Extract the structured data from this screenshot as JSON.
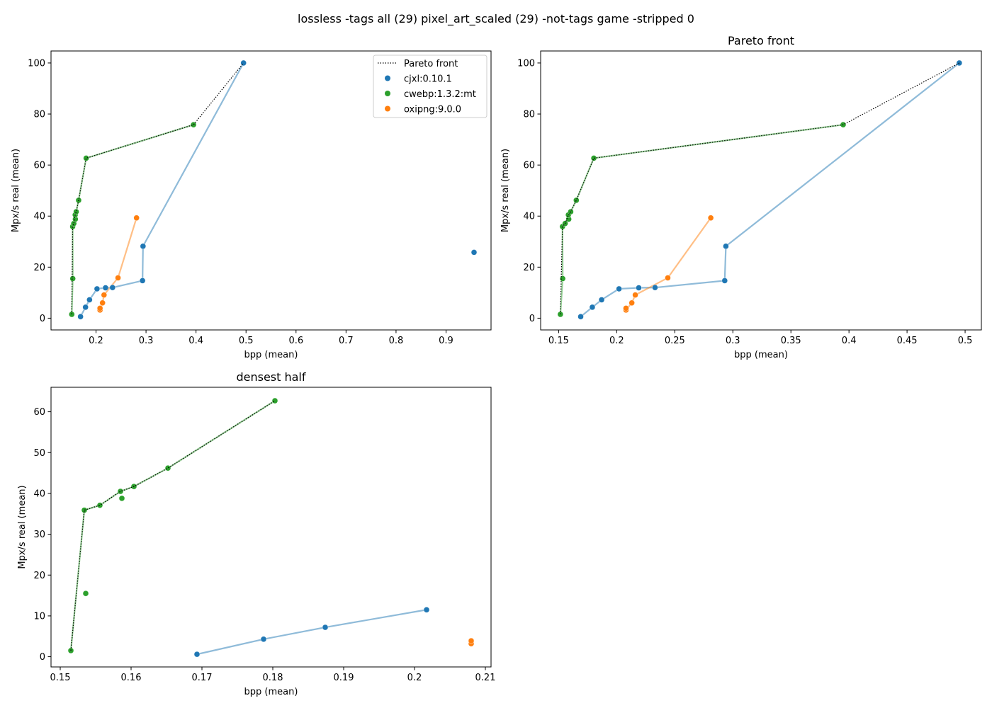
{
  "figure": {
    "suptitle": "lossless -tags all (29) pixel_art_scaled (29) -not-tags game -stripped 0"
  },
  "legend": {
    "items": [
      {
        "label": "Pareto front",
        "kind": "line",
        "color": "#000000"
      },
      {
        "label": "cjxl:0.10.1",
        "kind": "marker",
        "color": "#1f77b4"
      },
      {
        "label": "cwebp:1.3.2:mt",
        "kind": "marker",
        "color": "#2ca02c"
      },
      {
        "label": "oxipng:9.0.0",
        "kind": "marker",
        "color": "#ff7f0e"
      }
    ]
  },
  "chart_data": [
    {
      "type": "scatter",
      "title": "",
      "xlabel": "bpp (mean)",
      "ylabel": "Mpx/s real (mean)",
      "xlim": [
        0.11,
        0.99
      ],
      "ylim": [
        -4.6,
        104.7
      ],
      "xticks": [
        0.2,
        0.3,
        0.4,
        0.5,
        0.6,
        0.7,
        0.8,
        0.9
      ],
      "yticks": [
        0,
        20,
        40,
        60,
        80,
        100
      ],
      "legend": "top-right",
      "series": [
        {
          "name": "cjxl:0.10.1",
          "color": "#1f77b4",
          "connected": true,
          "points": [
            [
              0.169,
              0.6
            ],
            [
              0.179,
              4.3
            ],
            [
              0.187,
              7.2
            ],
            [
              0.202,
              11.5
            ],
            [
              0.219,
              11.9
            ],
            [
              0.233,
              12.0
            ],
            [
              0.293,
              14.7
            ],
            [
              0.294,
              28.2
            ],
            [
              0.495,
              100.0
            ],
            [
              0.956,
              25.8
            ]
          ],
          "line_points": [
            [
              0.169,
              0.6
            ],
            [
              0.179,
              4.3
            ],
            [
              0.187,
              7.2
            ],
            [
              0.202,
              11.5
            ],
            [
              0.219,
              11.9
            ],
            [
              0.233,
              12.0
            ],
            [
              0.293,
              14.7
            ],
            [
              0.294,
              28.2
            ],
            [
              0.495,
              100.0
            ]
          ]
        },
        {
          "name": "cwebp:1.3.2:mt",
          "color": "#2ca02c",
          "connected": true,
          "points": [
            [
              0.1515,
              1.5
            ],
            [
              0.1535,
              15.5
            ],
            [
              0.1533,
              35.9
            ],
            [
              0.1556,
              37.1
            ],
            [
              0.1587,
              38.8
            ],
            [
              0.1584,
              40.5
            ],
            [
              0.1604,
              41.7
            ],
            [
              0.1652,
              46.2
            ],
            [
              0.1803,
              62.7
            ],
            [
              0.395,
              75.8
            ]
          ],
          "line_points": [
            [
              0.1515,
              1.5
            ],
            [
              0.1535,
              15.5
            ],
            [
              0.1533,
              35.9
            ],
            [
              0.1556,
              37.1
            ],
            [
              0.1587,
              38.8
            ],
            [
              0.1584,
              40.5
            ],
            [
              0.1604,
              41.7
            ],
            [
              0.1652,
              46.2
            ],
            [
              0.1803,
              62.7
            ],
            [
              0.395,
              75.8
            ]
          ]
        },
        {
          "name": "oxipng:9.0.0",
          "color": "#ff7f0e",
          "connected": true,
          "points": [
            [
              0.208,
              3.2
            ],
            [
              0.208,
              3.9
            ],
            [
              0.213,
              6.0
            ],
            [
              0.216,
              9.1
            ],
            [
              0.244,
              15.8
            ],
            [
              0.281,
              39.3
            ]
          ],
          "line_points": [
            [
              0.208,
              3.2
            ],
            [
              0.213,
              6.0
            ],
            [
              0.216,
              9.1
            ],
            [
              0.244,
              15.8
            ],
            [
              0.281,
              39.3
            ]
          ]
        },
        {
          "name": "Pareto front",
          "color": "#000000",
          "style": "dotted",
          "points": [
            [
              0.1515,
              1.5
            ],
            [
              0.1533,
              35.9
            ],
            [
              0.1556,
              37.1
            ],
            [
              0.1584,
              40.5
            ],
            [
              0.1604,
              41.7
            ],
            [
              0.1652,
              46.2
            ],
            [
              0.1803,
              62.7
            ],
            [
              0.395,
              75.8
            ],
            [
              0.495,
              100.0
            ]
          ]
        }
      ]
    },
    {
      "type": "scatter",
      "title": "Pareto front",
      "xlabel": "bpp (mean)",
      "ylabel": "Mpx/s real (mean)",
      "xlim": [
        0.1345,
        0.514
      ],
      "ylim": [
        -4.6,
        104.7
      ],
      "xticks": [
        0.15,
        0.2,
        0.25,
        0.3,
        0.35,
        0.4,
        0.45,
        0.5
      ],
      "yticks": [
        0,
        20,
        40,
        60,
        80,
        100
      ],
      "series": [
        {
          "name": "cjxl:0.10.1",
          "color": "#1f77b4",
          "connected": true,
          "points": [
            [
              0.169,
              0.6
            ],
            [
              0.179,
              4.3
            ],
            [
              0.187,
              7.2
            ],
            [
              0.202,
              11.5
            ],
            [
              0.219,
              11.9
            ],
            [
              0.233,
              12.0
            ],
            [
              0.293,
              14.7
            ],
            [
              0.294,
              28.2
            ],
            [
              0.495,
              100.0
            ]
          ]
        },
        {
          "name": "cwebp:1.3.2:mt",
          "color": "#2ca02c",
          "connected": true,
          "points": [
            [
              0.1515,
              1.5
            ],
            [
              0.1535,
              15.5
            ],
            [
              0.1533,
              35.9
            ],
            [
              0.1556,
              37.1
            ],
            [
              0.1587,
              38.8
            ],
            [
              0.1584,
              40.5
            ],
            [
              0.1604,
              41.7
            ],
            [
              0.1652,
              46.2
            ],
            [
              0.1803,
              62.7
            ],
            [
              0.395,
              75.8
            ]
          ]
        },
        {
          "name": "oxipng:9.0.0",
          "color": "#ff7f0e",
          "connected": true,
          "points": [
            [
              0.208,
              3.2
            ],
            [
              0.208,
              3.9
            ],
            [
              0.213,
              6.0
            ],
            [
              0.216,
              9.1
            ],
            [
              0.244,
              15.8
            ],
            [
              0.281,
              39.3
            ]
          ],
          "line_points": [
            [
              0.208,
              3.2
            ],
            [
              0.213,
              6.0
            ],
            [
              0.216,
              9.1
            ],
            [
              0.244,
              15.8
            ],
            [
              0.281,
              39.3
            ]
          ]
        },
        {
          "name": "Pareto front",
          "color": "#000000",
          "style": "dotted",
          "points": [
            [
              0.1515,
              1.5
            ],
            [
              0.1533,
              35.9
            ],
            [
              0.1556,
              37.1
            ],
            [
              0.1584,
              40.5
            ],
            [
              0.1604,
              41.7
            ],
            [
              0.1652,
              46.2
            ],
            [
              0.1803,
              62.7
            ],
            [
              0.395,
              75.8
            ],
            [
              0.495,
              100.0
            ]
          ]
        }
      ]
    },
    {
      "type": "scatter",
      "title": "densest half",
      "xlabel": "bpp (mean)",
      "ylabel": "Mpx/s real (mean)",
      "xlim": [
        0.1487,
        0.2108
      ],
      "ylim": [
        -2.5,
        66.0
      ],
      "xticks": [
        0.15,
        0.16,
        0.17,
        0.18,
        0.19,
        0.2,
        0.21
      ],
      "yticks": [
        0,
        10,
        20,
        30,
        40,
        50,
        60
      ],
      "series": [
        {
          "name": "cjxl:0.10.1",
          "color": "#1f77b4",
          "connected": true,
          "points": [
            [
              0.1693,
              0.6
            ],
            [
              0.1787,
              4.3
            ],
            [
              0.1874,
              7.2
            ],
            [
              0.2017,
              11.5
            ]
          ]
        },
        {
          "name": "cwebp:1.3.2:mt",
          "color": "#2ca02c",
          "connected": true,
          "points": [
            [
              0.1515,
              1.5
            ],
            [
              0.1536,
              15.5
            ],
            [
              0.1534,
              35.9
            ],
            [
              0.1556,
              37.1
            ],
            [
              0.1587,
              38.8
            ],
            [
              0.1585,
              40.5
            ],
            [
              0.1604,
              41.7
            ],
            [
              0.1652,
              46.2
            ],
            [
              0.1803,
              62.7
            ]
          ],
          "line_points": [
            [
              0.1515,
              1.5
            ],
            [
              0.1534,
              35.9
            ],
            [
              0.1556,
              37.1
            ],
            [
              0.1585,
              40.5
            ],
            [
              0.1604,
              41.7
            ],
            [
              0.1652,
              46.2
            ],
            [
              0.1803,
              62.7
            ]
          ]
        },
        {
          "name": "oxipng:9.0.0",
          "color": "#ff7f0e",
          "connected": false,
          "points": [
            [
              0.208,
              3.2
            ],
            [
              0.208,
              3.9
            ]
          ]
        },
        {
          "name": "Pareto front",
          "color": "#000000",
          "style": "dotted",
          "points": [
            [
              0.1515,
              1.5
            ],
            [
              0.1534,
              35.9
            ],
            [
              0.1556,
              37.1
            ],
            [
              0.1585,
              40.5
            ],
            [
              0.1604,
              41.7
            ],
            [
              0.1652,
              46.2
            ],
            [
              0.1803,
              62.7
            ]
          ]
        }
      ]
    }
  ]
}
